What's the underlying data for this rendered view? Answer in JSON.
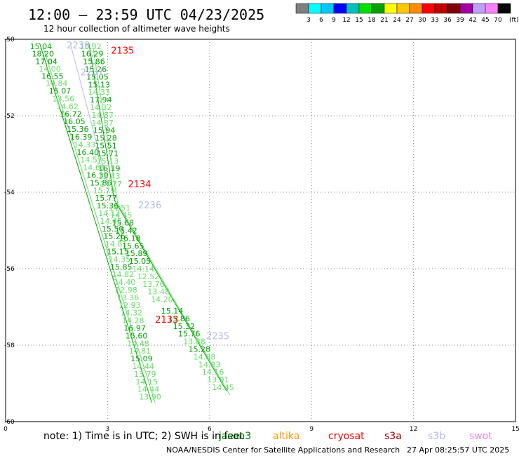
{
  "header": {
    "title": "12:00 – 23:59 UTC 04/23/2025",
    "subtitle": "12 hour collection of altimeter wave heights"
  },
  "colorbar": {
    "unit": "(ft)",
    "colors": [
      "#808080",
      "#00ffff",
      "#00c8ff",
      "#0000ff",
      "#00c0c0",
      "#00e000",
      "#00a000",
      "#ffff00",
      "#ffc800",
      "#ff8c00",
      "#ff0000",
      "#c00000",
      "#800000",
      "#a000a0",
      "#c0a0ff",
      "#ff80ff",
      "#000000"
    ],
    "labels": [
      "3",
      "6",
      "9",
      "12",
      "15",
      "18",
      "21",
      "24",
      "27",
      "30",
      "33",
      "36",
      "39",
      "42",
      "45",
      "70"
    ]
  },
  "footer": {
    "note": "note:  1) Time is in UTC; 2) SWH is in feet",
    "credit": "NOAA/NESDIS Center for Satellite Applications and Research",
    "timestamp": "27 Apr 08:25:57 UTC 2025",
    "satellites": [
      {
        "name": "jason3",
        "color": "#008000"
      },
      {
        "name": "altika",
        "color": "#ff9900"
      },
      {
        "name": "cryosat",
        "color": "#ff0000"
      },
      {
        "name": "s3a",
        "color": "#a00000"
      },
      {
        "name": "s3b",
        "color": "#b8b8ee"
      },
      {
        "name": "swot",
        "color": "#ee88ee"
      }
    ]
  },
  "chart_data": {
    "type": "scatter",
    "xlim": [
      0,
      15
    ],
    "ylim": [
      -60,
      -50
    ],
    "x_ticks": [
      0,
      3,
      6,
      9,
      12,
      15
    ],
    "y_ticks": [
      -50,
      -52,
      -54,
      -56,
      -58,
      -60
    ],
    "y_tick_labels": [
      "-50",
      "-52",
      "-54",
      "-56",
      "-58",
      "-60"
    ],
    "grid": true,
    "pass_labels": [
      {
        "text": "2238",
        "x": 1.8,
        "y": -50.15,
        "color": "#b8b8ee"
      },
      {
        "text": "2135",
        "x": 3.1,
        "y": -50.28,
        "color": "#ff0000"
      },
      {
        "text": "2237",
        "x": 2.2,
        "y": -50.85,
        "color": "#b8b8ee"
      },
      {
        "text": "2134",
        "x": 3.6,
        "y": -53.78,
        "color": "#ff0000"
      },
      {
        "text": "2236",
        "x": 3.9,
        "y": -54.33,
        "color": "#b8b8ee"
      },
      {
        "text": "2133",
        "x": 4.4,
        "y": -57.32,
        "color": "#ff0000"
      },
      {
        "text": "2235",
        "x": 5.9,
        "y": -57.75,
        "color": "#b8b8ee"
      }
    ],
    "points": [
      {
        "x": 1.04,
        "y": -50.18,
        "v": "15.04",
        "c": "#00b000"
      },
      {
        "x": 1.1,
        "y": -50.38,
        "v": "18.20",
        "c": "#00a000"
      },
      {
        "x": 1.2,
        "y": -50.58,
        "v": "17.04",
        "c": "#00a000"
      },
      {
        "x": 1.3,
        "y": -50.77,
        "v": "14.00",
        "c": "#66dd66"
      },
      {
        "x": 1.38,
        "y": -50.96,
        "v": "16.55",
        "c": "#00a000"
      },
      {
        "x": 1.5,
        "y": -51.15,
        "v": "14.84",
        "c": "#66dd66"
      },
      {
        "x": 1.6,
        "y": -51.35,
        "v": "15.07",
        "c": "#00a000"
      },
      {
        "x": 1.7,
        "y": -51.55,
        "v": "13.56",
        "c": "#66dd66"
      },
      {
        "x": 1.82,
        "y": -51.75,
        "v": "14.62",
        "c": "#66dd66"
      },
      {
        "x": 1.92,
        "y": -51.95,
        "v": "16.72",
        "c": "#00a000"
      },
      {
        "x": 2.02,
        "y": -52.15,
        "v": "16.05",
        "c": "#00a000"
      },
      {
        "x": 2.12,
        "y": -52.35,
        "v": "15.36",
        "c": "#00a000"
      },
      {
        "x": 2.22,
        "y": -52.55,
        "v": "16.39",
        "c": "#00a000"
      },
      {
        "x": 2.32,
        "y": -52.75,
        "v": "14.33",
        "c": "#66dd66"
      },
      {
        "x": 2.42,
        "y": -52.95,
        "v": "16.40",
        "c": "#00a000"
      },
      {
        "x": 2.52,
        "y": -53.15,
        "v": "14.57",
        "c": "#66dd66"
      },
      {
        "x": 2.6,
        "y": -53.35,
        "v": "14.63",
        "c": "#66dd66"
      },
      {
        "x": 2.7,
        "y": -53.55,
        "v": "16.30",
        "c": "#00a000"
      },
      {
        "x": 2.8,
        "y": -53.75,
        "v": "15.86",
        "c": "#00a000"
      },
      {
        "x": 2.9,
        "y": -53.95,
        "v": "15.79",
        "c": "#66dd66"
      },
      {
        "x": 2.95,
        "y": -54.15,
        "v": "15.77",
        "c": "#00a000"
      },
      {
        "x": 3.0,
        "y": -54.35,
        "v": "15.36",
        "c": "#00a000"
      },
      {
        "x": 3.05,
        "y": -54.55,
        "v": "14.12",
        "c": "#66dd66"
      },
      {
        "x": 3.1,
        "y": -54.75,
        "v": "14.45",
        "c": "#66dd66"
      },
      {
        "x": 3.15,
        "y": -54.95,
        "v": "15.50",
        "c": "#00a000"
      },
      {
        "x": 3.2,
        "y": -55.15,
        "v": "15.26",
        "c": "#00a000"
      },
      {
        "x": 3.25,
        "y": -55.35,
        "v": "14.81",
        "c": "#66dd66"
      },
      {
        "x": 3.3,
        "y": -55.55,
        "v": "15.15",
        "c": "#00a000"
      },
      {
        "x": 3.35,
        "y": -55.75,
        "v": "14.35",
        "c": "#66dd66"
      },
      {
        "x": 3.4,
        "y": -55.95,
        "v": "15.85",
        "c": "#00a000"
      },
      {
        "x": 3.45,
        "y": -56.15,
        "v": "14.82",
        "c": "#66dd66"
      },
      {
        "x": 3.5,
        "y": -56.35,
        "v": "14.40",
        "c": "#66dd66"
      },
      {
        "x": 3.55,
        "y": -56.55,
        "v": "12.98",
        "c": "#66dd66"
      },
      {
        "x": 3.6,
        "y": -56.75,
        "v": "13.36",
        "c": "#66dd66"
      },
      {
        "x": 3.65,
        "y": -56.95,
        "v": "12.93",
        "c": "#66dd66"
      },
      {
        "x": 3.7,
        "y": -57.15,
        "v": "14.32",
        "c": "#66dd66"
      },
      {
        "x": 3.75,
        "y": -57.35,
        "v": "14.28",
        "c": "#66dd66"
      },
      {
        "x": 3.8,
        "y": -57.55,
        "v": "16.97",
        "c": "#00a000"
      },
      {
        "x": 3.85,
        "y": -57.75,
        "v": "15.60",
        "c": "#00a000"
      },
      {
        "x": 3.9,
        "y": -57.95,
        "v": "14.48",
        "c": "#66dd66"
      },
      {
        "x": 3.95,
        "y": -58.15,
        "v": "14.81",
        "c": "#66dd66"
      },
      {
        "x": 4.0,
        "y": -58.35,
        "v": "15.09",
        "c": "#00a000"
      },
      {
        "x": 4.05,
        "y": -58.55,
        "v": "14.44",
        "c": "#66dd66"
      },
      {
        "x": 4.1,
        "y": -58.75,
        "v": "13.79",
        "c": "#66dd66"
      },
      {
        "x": 4.15,
        "y": -58.95,
        "v": "14.15",
        "c": "#66dd66"
      },
      {
        "x": 4.2,
        "y": -59.15,
        "v": "14.44",
        "c": "#66dd66"
      },
      {
        "x": 4.25,
        "y": -59.35,
        "v": "13.90",
        "c": "#66dd66"
      },
      {
        "x": 2.5,
        "y": -50.18,
        "v": "15.32",
        "c": "#66dd66"
      },
      {
        "x": 2.55,
        "y": -50.38,
        "v": "16.29",
        "c": "#00a000"
      },
      {
        "x": 2.6,
        "y": -50.58,
        "v": "15.86",
        "c": "#00a000"
      },
      {
        "x": 2.65,
        "y": -50.78,
        "v": "15.26",
        "c": "#00a000"
      },
      {
        "x": 2.7,
        "y": -50.98,
        "v": "15.05",
        "c": "#00a000"
      },
      {
        "x": 2.75,
        "y": -51.18,
        "v": "15.13",
        "c": "#00a000"
      },
      {
        "x": 2.75,
        "y": -51.38,
        "v": "14.33",
        "c": "#66dd66"
      },
      {
        "x": 2.8,
        "y": -51.58,
        "v": "17.94",
        "c": "#00a000"
      },
      {
        "x": 2.8,
        "y": -51.78,
        "v": "14.32",
        "c": "#66dd66"
      },
      {
        "x": 2.85,
        "y": -51.98,
        "v": "14.87",
        "c": "#66dd66"
      },
      {
        "x": 2.85,
        "y": -52.18,
        "v": "14.37",
        "c": "#66dd66"
      },
      {
        "x": 2.9,
        "y": -52.38,
        "v": "15.94",
        "c": "#00a000"
      },
      {
        "x": 2.95,
        "y": -52.58,
        "v": "15.28",
        "c": "#00a000"
      },
      {
        "x": 2.95,
        "y": -52.78,
        "v": "15.51",
        "c": "#00a000"
      },
      {
        "x": 3.0,
        "y": -52.98,
        "v": "15.71",
        "c": "#00a000"
      },
      {
        "x": 3.0,
        "y": -53.18,
        "v": "15.13",
        "c": "#66dd66"
      },
      {
        "x": 3.05,
        "y": -53.38,
        "v": "16.19",
        "c": "#00a000"
      },
      {
        "x": 3.05,
        "y": -53.58,
        "v": "15.43",
        "c": "#66dd66"
      },
      {
        "x": 3.1,
        "y": -53.78,
        "v": "14.77",
        "c": "#66dd66"
      },
      {
        "x": 3.35,
        "y": -54.4,
        "v": "14.51",
        "c": "#66dd66"
      },
      {
        "x": 3.4,
        "y": -54.6,
        "v": "14.45",
        "c": "#66dd66"
      },
      {
        "x": 3.45,
        "y": -54.8,
        "v": "15.68",
        "c": "#00a000"
      },
      {
        "x": 3.55,
        "y": -55.0,
        "v": "15.42",
        "c": "#00a000"
      },
      {
        "x": 3.65,
        "y": -55.2,
        "v": "16.18",
        "c": "#00a000"
      },
      {
        "x": 3.75,
        "y": -55.4,
        "v": "15.65",
        "c": "#00a000"
      },
      {
        "x": 3.85,
        "y": -55.6,
        "v": "15.89",
        "c": "#00a000"
      },
      {
        "x": 3.95,
        "y": -55.8,
        "v": "15.05",
        "c": "#00a000"
      },
      {
        "x": 4.05,
        "y": -56.0,
        "v": "14.14",
        "c": "#66dd66"
      },
      {
        "x": 4.2,
        "y": -56.2,
        "v": "12.52",
        "c": "#66dd66"
      },
      {
        "x": 4.35,
        "y": -56.4,
        "v": "13.76",
        "c": "#66dd66"
      },
      {
        "x": 4.5,
        "y": -56.6,
        "v": "13.48",
        "c": "#66dd66"
      },
      {
        "x": 4.6,
        "y": -56.8,
        "v": "14.20",
        "c": "#66dd66"
      },
      {
        "x": 4.9,
        "y": -57.1,
        "v": "15.14",
        "c": "#00a000"
      },
      {
        "x": 5.1,
        "y": -57.3,
        "v": "15.86",
        "c": "#00a000"
      },
      {
        "x": 5.25,
        "y": -57.5,
        "v": "15.32",
        "c": "#00a000"
      },
      {
        "x": 5.4,
        "y": -57.7,
        "v": "15.76",
        "c": "#00a000"
      },
      {
        "x": 5.55,
        "y": -57.9,
        "v": "13.88",
        "c": "#66dd66"
      },
      {
        "x": 5.7,
        "y": -58.1,
        "v": "15.28",
        "c": "#00a000"
      },
      {
        "x": 5.85,
        "y": -58.3,
        "v": "14.88",
        "c": "#66dd66"
      },
      {
        "x": 6.0,
        "y": -58.5,
        "v": "14.33",
        "c": "#66dd66"
      },
      {
        "x": 6.1,
        "y": -58.7,
        "v": "14.16",
        "c": "#66dd66"
      },
      {
        "x": 6.25,
        "y": -58.9,
        "v": "13.91",
        "c": "#66dd66"
      },
      {
        "x": 6.4,
        "y": -59.1,
        "v": "14.45",
        "c": "#66dd66"
      }
    ],
    "tracks": [
      {
        "color": "#00a000",
        "x": [
          1.0,
          4.3
        ],
        "y": [
          -50.1,
          -59.5
        ]
      },
      {
        "color": "#66dd66",
        "x": [
          1.1,
          4.4
        ],
        "y": [
          -50.2,
          -59.5
        ]
      },
      {
        "color": "#00a000",
        "x": [
          2.45,
          3.2
        ],
        "y": [
          -50.1,
          -54.2
        ]
      },
      {
        "color": "#66dd66",
        "x": [
          2.55,
          3.3
        ],
        "y": [
          -50.1,
          -54.3
        ]
      },
      {
        "color": "#00a000",
        "x": [
          3.2,
          6.5
        ],
        "y": [
          -54.2,
          -59.2
        ]
      },
      {
        "color": "#66dd66",
        "x": [
          3.3,
          6.6
        ],
        "y": [
          -54.3,
          -59.3
        ]
      },
      {
        "color": "#b8b8ee",
        "x": [
          1.9,
          3.0
        ],
        "y": [
          -50.1,
          -53.8
        ]
      }
    ]
  }
}
